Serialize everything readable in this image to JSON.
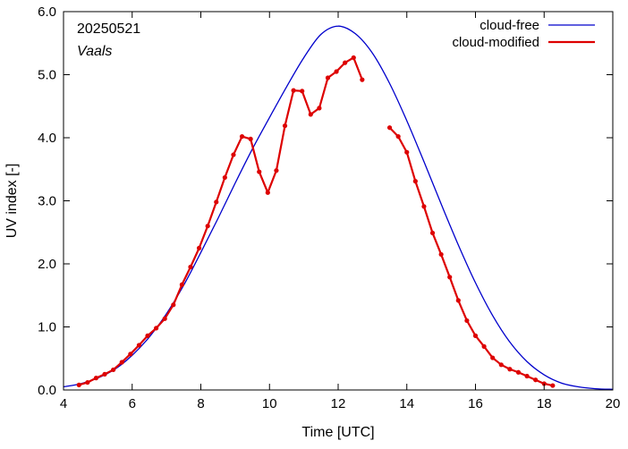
{
  "chart_data": {
    "type": "line",
    "title": "",
    "xlabel": "Time  [UTC]",
    "ylabel": "UV index  [-]",
    "xlim": [
      4,
      20
    ],
    "ylim": [
      0,
      6
    ],
    "x_ticks": [
      4,
      6,
      8,
      10,
      12,
      14,
      16,
      18,
      20
    ],
    "x_tick_labels": [
      "4",
      "6",
      "8",
      "10",
      "12",
      "14",
      "16",
      "18",
      "20"
    ],
    "y_ticks": [
      0,
      1,
      2,
      3,
      4,
      5,
      6
    ],
    "y_tick_labels": [
      "0.0",
      "1.0",
      "2.0",
      "3.0",
      "4.0",
      "5.0",
      "6.0"
    ],
    "grid": false,
    "legend_position": "top-right",
    "annotations": [
      "20250521",
      "Vaals"
    ],
    "series": [
      {
        "name": "cloud-free",
        "color": "#0000cc",
        "markers": false,
        "x": [
          4.0,
          4.5,
          5.0,
          5.5,
          6.0,
          6.5,
          7.0,
          7.5,
          8.0,
          8.5,
          9.0,
          9.5,
          10.0,
          10.5,
          11.0,
          11.5,
          12.0,
          12.5,
          13.0,
          13.5,
          14.0,
          14.5,
          15.0,
          15.5,
          16.0,
          16.5,
          17.0,
          17.5,
          18.0,
          18.5,
          19.0,
          19.5,
          20.0
        ],
        "values": [
          0.05,
          0.1,
          0.19,
          0.33,
          0.55,
          0.84,
          1.21,
          1.66,
          2.18,
          2.72,
          3.28,
          3.82,
          4.32,
          4.81,
          5.27,
          5.64,
          5.77,
          5.65,
          5.34,
          4.86,
          4.27,
          3.62,
          2.95,
          2.3,
          1.7,
          1.18,
          0.76,
          0.45,
          0.24,
          0.11,
          0.05,
          0.02,
          0.01
        ]
      },
      {
        "name": "cloud-modified",
        "color": "#dd0000",
        "markers": true,
        "segments": [
          {
            "x": [
              4.45,
              4.7,
              4.95,
              5.2,
              5.45,
              5.7,
              5.95,
              6.2,
              6.45,
              6.7,
              6.95,
              7.2,
              7.45,
              7.7,
              7.95,
              8.2,
              8.45,
              8.7,
              8.95,
              9.2,
              9.45,
              9.7,
              9.95,
              10.2,
              10.45,
              10.7,
              10.95,
              11.2,
              11.45,
              11.7,
              11.95,
              12.2,
              12.45,
              12.7
            ],
            "values": [
              0.08,
              0.12,
              0.19,
              0.25,
              0.32,
              0.44,
              0.57,
              0.71,
              0.86,
              0.98,
              1.13,
              1.35,
              1.67,
              1.95,
              2.25,
              2.6,
              2.98,
              3.37,
              3.73,
              4.02,
              3.98,
              3.46,
              3.13,
              3.48,
              4.19,
              4.75,
              4.74,
              4.37,
              4.47,
              4.95,
              5.05,
              5.19,
              5.27,
              4.92
            ]
          },
          {
            "x": [
              13.5,
              13.75,
              14.0,
              14.25,
              14.5,
              14.75,
              15.0,
              15.25,
              15.5,
              15.75,
              16.0,
              16.25,
              16.5,
              16.75,
              17.0,
              17.25,
              17.5,
              17.75,
              18.0,
              18.25
            ],
            "values": [
              4.16,
              4.02,
              3.77,
              3.31,
              2.91,
              2.49,
              2.15,
              1.79,
              1.42,
              1.1,
              0.86,
              0.69,
              0.51,
              0.4,
              0.33,
              0.28,
              0.22,
              0.16,
              0.1,
              0.07
            ]
          }
        ]
      }
    ]
  }
}
